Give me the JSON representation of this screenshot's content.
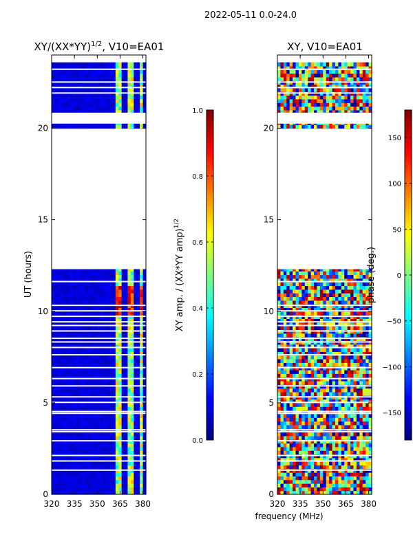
{
  "figure": {
    "suptitle": "2022-05-11 0.0-24.0",
    "xlabel": "frequency (MHz)"
  },
  "chart_data": [
    {
      "type": "heatmap",
      "title_prefix": "XY/(XX*YY)",
      "title_exponent": "1/2",
      "title_suffix": ", V10=EA01",
      "xlabel": "",
      "ylabel": "UT (hours)",
      "xlim": [
        320,
        382
      ],
      "ylim": [
        0,
        24
      ],
      "xticks": [
        320,
        335,
        350,
        365,
        380
      ],
      "yticks": [
        0,
        5,
        10,
        15,
        20
      ],
      "colormap": "jet",
      "colorbar": {
        "label_prefix": "XY amp. / (XX*YY amp)",
        "label_exponent": "1/2",
        "range": [
          0.0,
          1.0
        ],
        "ticks": [
          0.0,
          0.2,
          0.4,
          0.6,
          0.8,
          1.0
        ],
        "tick_labels": [
          "0.0",
          "0.2",
          "0.4",
          "0.6",
          "0.8",
          "1.0"
        ]
      },
      "data_time_ranges_hours": [
        [
          0,
          12.3
        ],
        [
          20.0,
          23.6
        ]
      ],
      "blank_time_ranges_hours": [
        [
          12.3,
          20.0
        ]
      ],
      "notes": "normalized amplitude mostly near 0.0 (deep blue) at 320-360 MHz; elevated 0.3-0.9 in bands near 362-366, 371-373 and 377-381 MHz"
    },
    {
      "type": "heatmap",
      "title": "XY, V10=EA01",
      "xlabel": "",
      "ylabel": "",
      "xlim": [
        320,
        382
      ],
      "ylim": [
        0,
        24
      ],
      "xticks": [
        320,
        335,
        350,
        365,
        380
      ],
      "yticks": [
        0,
        5,
        10,
        15,
        20
      ],
      "colormap": "jet",
      "colorbar": {
        "label": "phase (deg.)",
        "range": [
          -180,
          180
        ],
        "ticks": [
          -150,
          -100,
          -50,
          0,
          50,
          100,
          150
        ],
        "tick_labels": [
          "−150",
          "−100",
          "−50",
          "0",
          "50",
          "100",
          "150"
        ]
      },
      "data_time_ranges_hours": [
        [
          0,
          12.3
        ],
        [
          20.0,
          23.6
        ]
      ],
      "blank_time_ranges_hours": [
        [
          12.3,
          20.0
        ]
      ],
      "notes": "phase spans the full -180 to 180 deg range with noisy structure across all frequencies"
    }
  ],
  "colors": {
    "axis": "#000000",
    "background": "#ffffff",
    "gap": "#ffffff"
  }
}
